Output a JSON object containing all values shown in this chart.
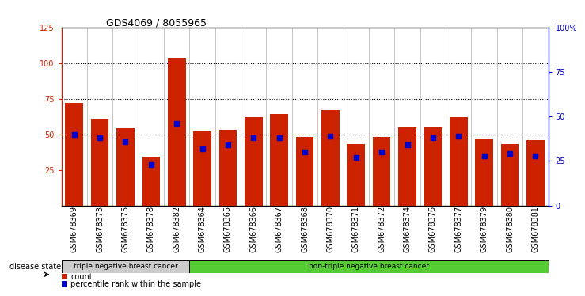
{
  "title": "GDS4069 / 8055965",
  "samples": [
    "GSM678369",
    "GSM678373",
    "GSM678375",
    "GSM678378",
    "GSM678382",
    "GSM678364",
    "GSM678365",
    "GSM678366",
    "GSM678367",
    "GSM678368",
    "GSM678370",
    "GSM678371",
    "GSM678372",
    "GSM678374",
    "GSM678376",
    "GSM678377",
    "GSM678379",
    "GSM678380",
    "GSM678381"
  ],
  "counts": [
    72,
    61,
    54,
    34,
    104,
    52,
    53,
    62,
    64,
    48,
    67,
    43,
    48,
    55,
    55,
    62,
    47,
    43,
    46
  ],
  "percentiles": [
    40,
    38,
    36,
    23,
    46,
    32,
    34,
    38,
    38,
    30,
    39,
    27,
    30,
    34,
    38,
    39,
    28,
    29,
    28
  ],
  "group1_count": 5,
  "group1_label": "triple negative breast cancer",
  "group2_label": "non-triple negative breast cancer",
  "ylim_left": [
    0,
    125
  ],
  "ylim_right": [
    0,
    100
  ],
  "yticks_left": [
    25,
    50,
    75,
    100,
    125
  ],
  "yticks_right": [
    0,
    25,
    50,
    75,
    100
  ],
  "ytick_right_labels": [
    "0",
    "25",
    "50",
    "75",
    "100%"
  ],
  "bar_color": "#cc2200",
  "dot_color": "#0000cc",
  "hline_values": [
    50,
    75,
    100
  ],
  "bg_color": "#ffffff",
  "legend_count_label": "count",
  "legend_pct_label": "percentile rank within the sample",
  "disease_state_label": "disease state",
  "group1_bg": "#cccccc",
  "group2_bg": "#55cc33",
  "title_fontsize": 9,
  "tick_fontsize": 7,
  "bar_width": 0.7
}
